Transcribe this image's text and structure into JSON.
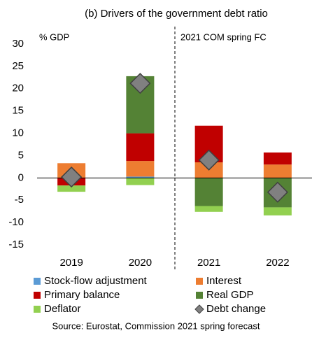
{
  "chart_data": {
    "type": "bar",
    "stacked": true,
    "title": "(b) Drivers of the government debt ratio",
    "y_label": "% GDP",
    "annotation": "2021 COM spring FC",
    "source": "Source: Eurostat, Commission 2021 spring forecast",
    "categories": [
      "2019",
      "2020",
      "2021",
      "2022"
    ],
    "series": [
      {
        "name": "Stock-flow adjustment",
        "color": "#5b9bd5",
        "values": [
          0,
          0.3,
          0,
          0
        ]
      },
      {
        "name": "Interest",
        "color": "#ed7d31",
        "values": [
          3.3,
          3.5,
          3.5,
          3.0
        ]
      },
      {
        "name": "Primary balance",
        "color": "#c00000",
        "values": [
          -1.7,
          6.2,
          8.2,
          2.7
        ]
      },
      {
        "name": "Real GDP",
        "color": "#548235",
        "values": [
          0,
          12.8,
          -6.3,
          -6.6
        ]
      },
      {
        "name": "Deflator",
        "color": "#92d050",
        "values": [
          -1.4,
          -1.6,
          -1.3,
          -1.8
        ]
      },
      {
        "name": "Debt change",
        "color": "#808080",
        "type": "diamond",
        "values": [
          0.2,
          21.2,
          4.0,
          -3.2
        ]
      }
    ],
    "ylim": [
      -15,
      30
    ],
    "yticks": [
      -15,
      -10,
      -5,
      0,
      5,
      10,
      15,
      20,
      25,
      30
    ],
    "grid": false
  }
}
